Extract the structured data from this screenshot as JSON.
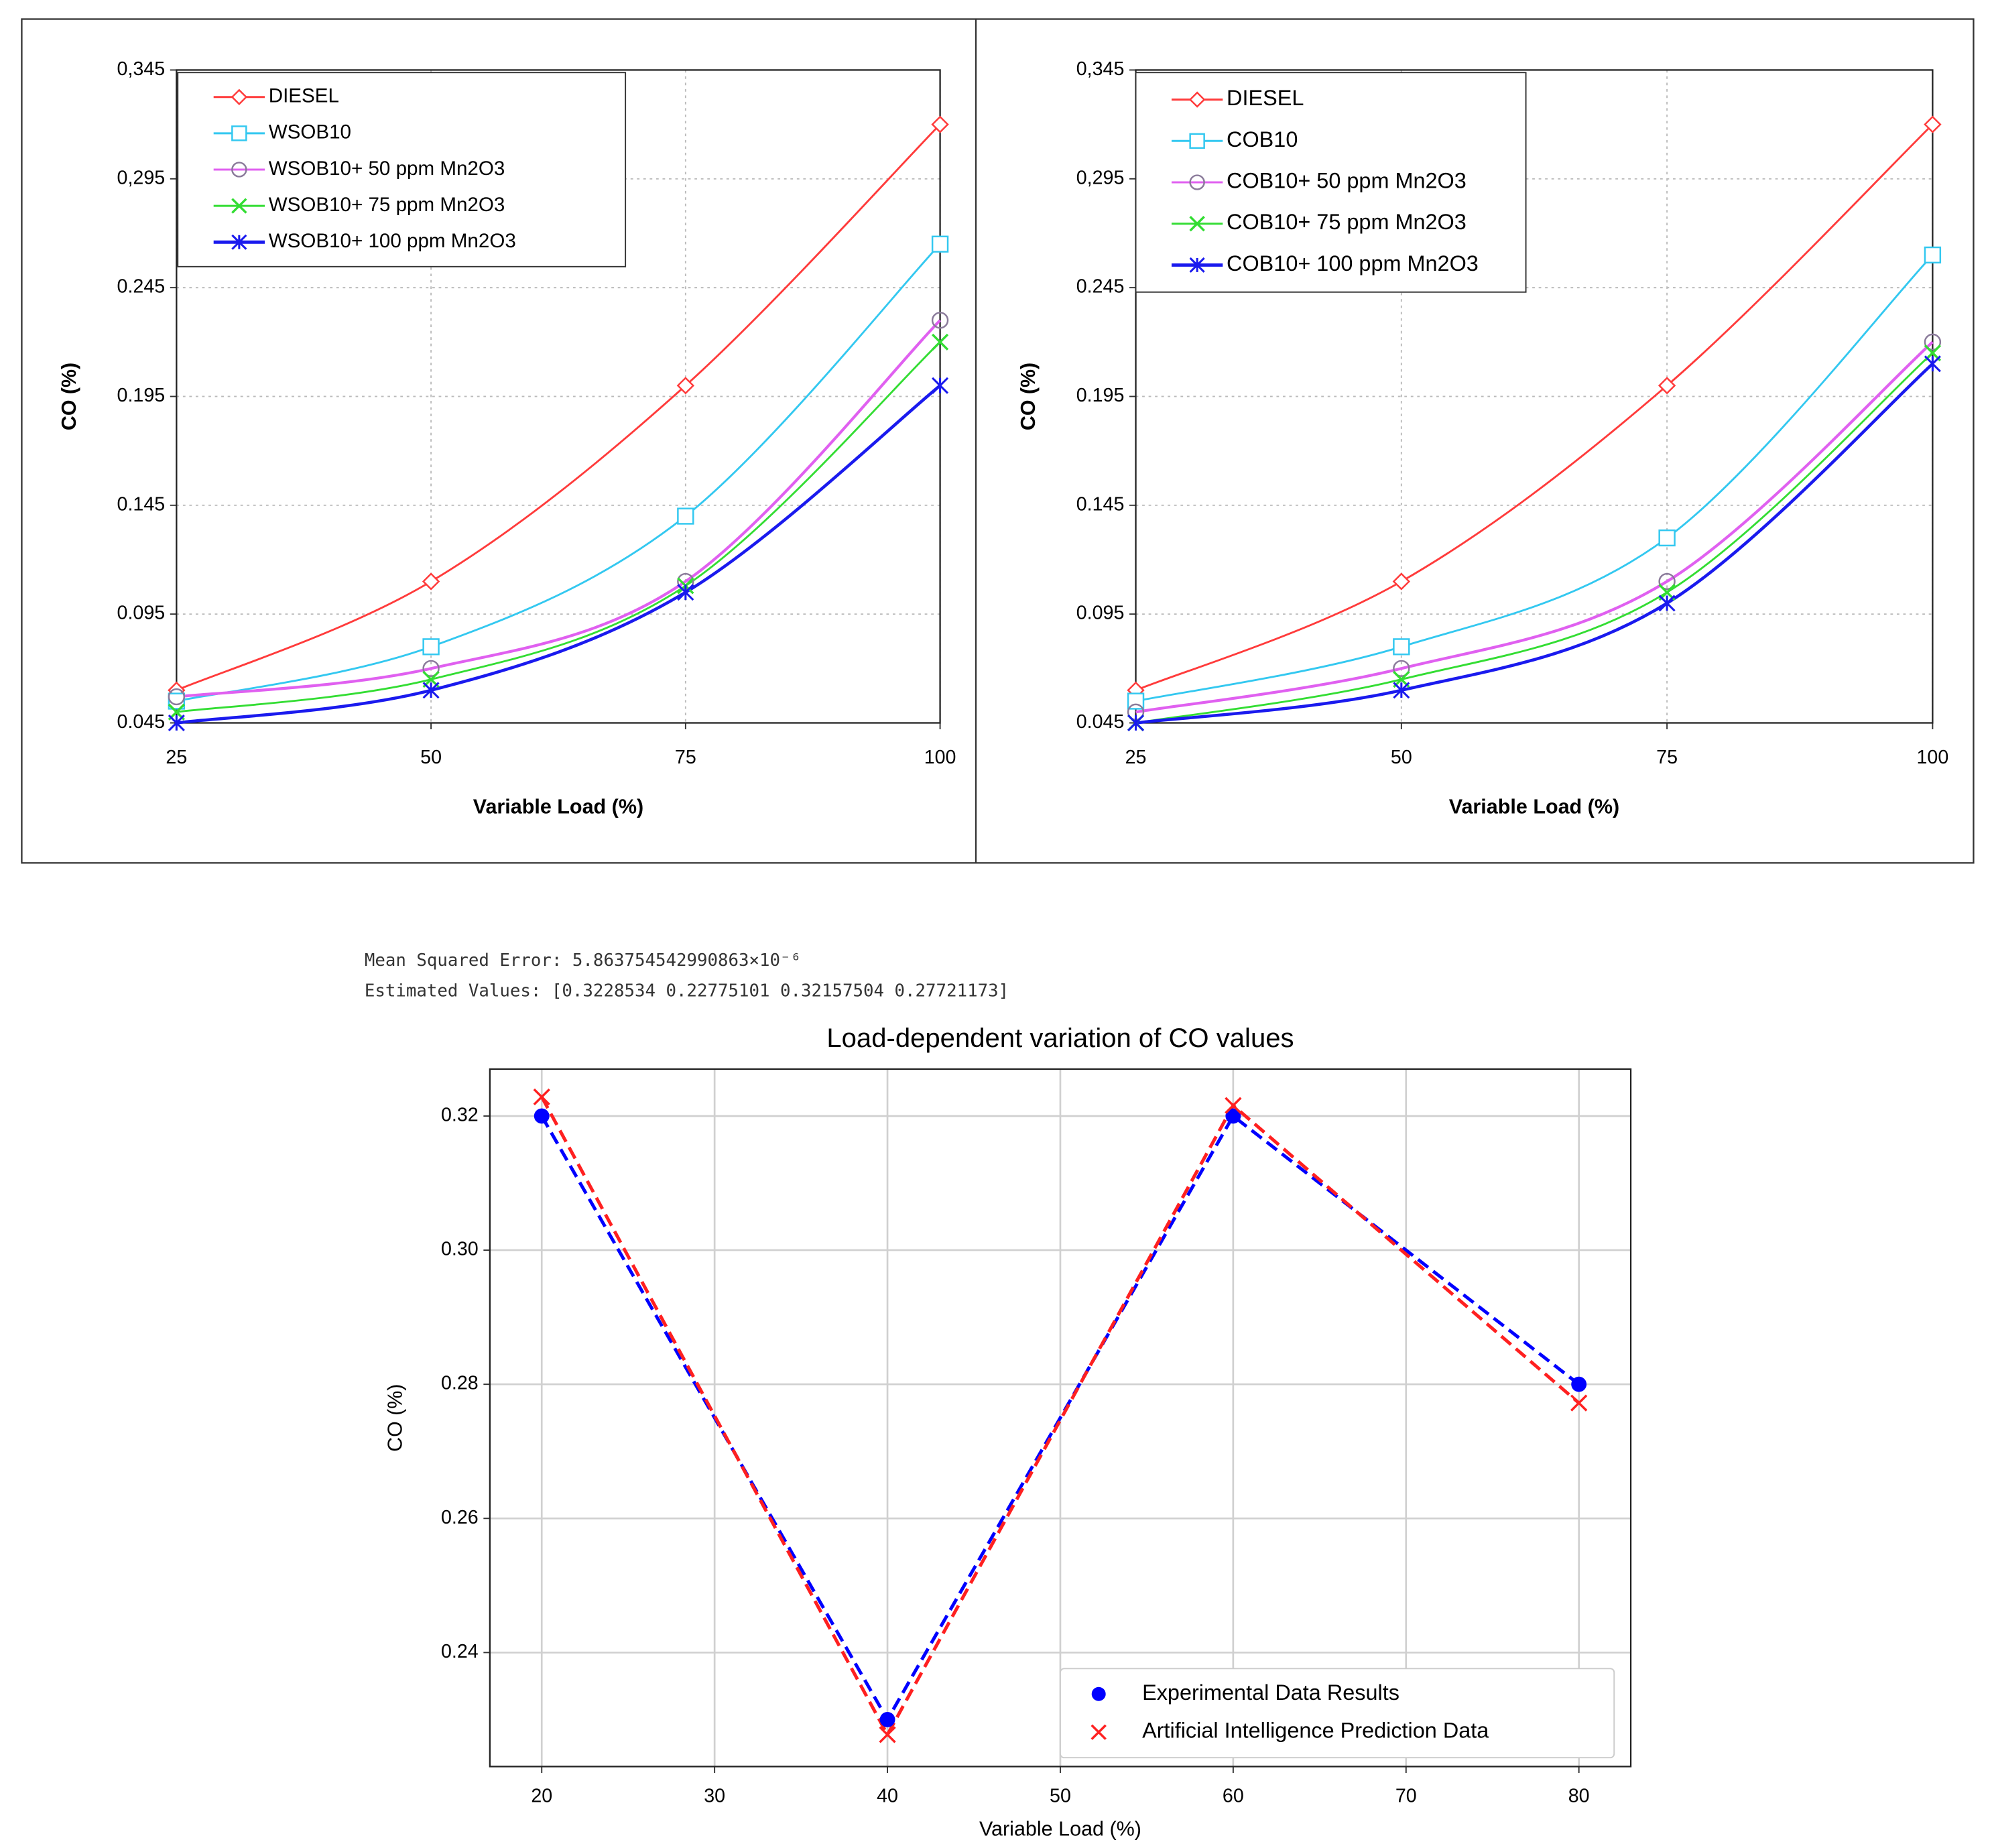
{
  "chart_data": [
    {
      "type": "line",
      "smooth": true,
      "grid": true,
      "grid_style": "dotted",
      "legend": "upper left",
      "x_label": "Variable Load (%)",
      "y_label": "CO (%)",
      "x": [
        25,
        50,
        75,
        100
      ],
      "xlim": [
        25,
        100
      ],
      "xticks": [
        25,
        50,
        75,
        100
      ],
      "ylim": [
        0.045,
        0.345
      ],
      "yticks": [
        0.045,
        0.095,
        0.145,
        0.195,
        0.245,
        {
          "value": 0.295,
          "label": "0,295"
        },
        {
          "value": 0.345,
          "label": "0,345"
        }
      ],
      "series": [
        {
          "name": "DIESEL",
          "color": "#ff3b3b",
          "marker": "diamond",
          "marker_color": "#ff3b3b",
          "values": [
            0.06,
            0.11,
            0.2,
            0.32
          ]
        },
        {
          "name": "WSOB10",
          "color": "#33c8f0",
          "marker": "square",
          "marker_color": "#33c8f0",
          "values": [
            0.055,
            0.08,
            0.14,
            0.265
          ]
        },
        {
          "name": "WSOB10+ 50 ppm Mn2O3",
          "color": "#e060f0",
          "marker": "circle",
          "marker_color": "#8a7a9a",
          "values": [
            0.057,
            0.07,
            0.11,
            0.23
          ]
        },
        {
          "name": "WSOB10+ 75 ppm Mn2O3",
          "color": "#33dd33",
          "marker": "x",
          "marker_color": "#33dd33",
          "values": [
            0.05,
            0.065,
            0.108,
            0.22
          ]
        },
        {
          "name": "WSOB10+ 100 ppm Mn2O3",
          "color": "#1a1aee",
          "marker": "star",
          "marker_color": "#1a1aee",
          "values": [
            0.045,
            0.06,
            0.105,
            0.2
          ]
        }
      ]
    },
    {
      "type": "line",
      "smooth": true,
      "grid": true,
      "grid_style": "dotted",
      "legend": "upper left",
      "x_label": "Variable Load (%)",
      "y_label": "CO (%)",
      "x": [
        25,
        50,
        75,
        100
      ],
      "xlim": [
        25,
        100
      ],
      "xticks": [
        25,
        50,
        75,
        100
      ],
      "ylim": [
        0.045,
        0.345
      ],
      "yticks": [
        0.045,
        0.095,
        0.145,
        0.195,
        0.245,
        {
          "value": 0.295,
          "label": "0,295"
        },
        {
          "value": 0.345,
          "label": "0,345"
        }
      ],
      "series": [
        {
          "name": "DIESEL",
          "color": "#ff3b3b",
          "marker": "diamond",
          "marker_color": "#ff3b3b",
          "values": [
            0.06,
            0.11,
            0.2,
            0.32
          ]
        },
        {
          "name": "COB10",
          "color": "#33c8f0",
          "marker": "square",
          "marker_color": "#33c8f0",
          "values": [
            0.055,
            0.08,
            0.13,
            0.26
          ]
        },
        {
          "name": "COB10+ 50 ppm Mn2O3",
          "color": "#e060f0",
          "marker": "circle",
          "marker_color": "#8a7a9a",
          "values": [
            0.05,
            0.07,
            0.11,
            0.22
          ]
        },
        {
          "name": "COB10+ 75 ppm Mn2O3",
          "color": "#33dd33",
          "marker": "x",
          "marker_color": "#33dd33",
          "values": [
            0.045,
            0.065,
            0.105,
            0.215
          ]
        },
        {
          "name": "COB10+ 100 ppm Mn2O3",
          "color": "#1a1aee",
          "marker": "star",
          "marker_color": "#1a1aee",
          "values": [
            0.045,
            0.06,
            0.1,
            0.21
          ]
        }
      ]
    },
    {
      "type": "line",
      "smooth": false,
      "grid": true,
      "grid_style": "solid",
      "legend": "lower right",
      "annotations": [
        "Mean Squared Error: 5.863754542990863×10⁻⁶",
        "Estimated Values: [0.3228534  0.22775101 0.32157504 0.27721173]"
      ],
      "title": "Load-dependent variation of CO values",
      "x_label": "Variable Load (%)",
      "y_label": "CO (%)",
      "x": [
        20,
        40,
        60,
        80
      ],
      "xlim": [
        17,
        83
      ],
      "xticks": [
        20,
        30,
        40,
        50,
        60,
        70,
        80
      ],
      "ylim": [
        0.223,
        0.327
      ],
      "yticks": [
        0.24,
        0.26,
        0.28,
        {
          "value": 0.3,
          "label": "0.30"
        },
        0.32
      ],
      "series": [
        {
          "name": "Experimental Data Results",
          "color": "#0000ff",
          "marker": "dot",
          "marker_color": "#0000ff",
          "linestyle": "dashed",
          "values": [
            0.32,
            0.23,
            0.32,
            0.28
          ]
        },
        {
          "name": "Artificial Intelligence Prediction Data",
          "color": "#ff2020",
          "marker": "x",
          "marker_color": "#ff2020",
          "linestyle": "dashed",
          "values": [
            0.3228534,
            0.22775101,
            0.32157504,
            0.27721173
          ]
        }
      ]
    }
  ]
}
